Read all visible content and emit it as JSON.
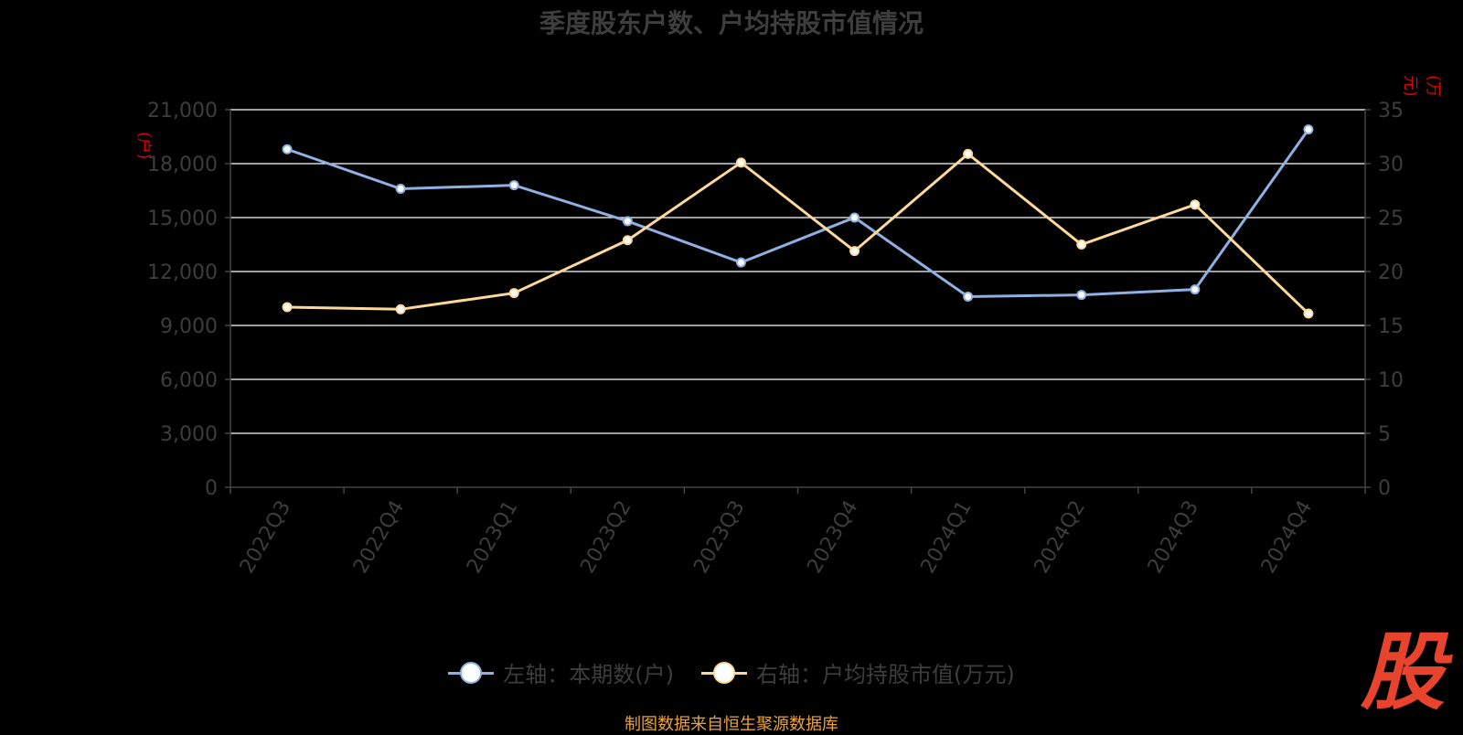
{
  "title": "季度股东户数、户均持股市值情况",
  "units": {
    "left": "(户)",
    "right": "(万元)"
  },
  "legend": [
    {
      "label": "左轴：本期数(户)",
      "color": "#8fb0e0"
    },
    {
      "label": "右轴：户均持股市值(万元)",
      "color": "#fcd89a"
    }
  ],
  "footer": "制图数据来自恒生聚源数据库",
  "logo_text": "股",
  "colors": {
    "grid": "#ffffff",
    "axis": "#444444",
    "tick_text": "#3d3d3d",
    "data_label": "#111111"
  },
  "chart_data": {
    "type": "line",
    "categories": [
      "2022Q3",
      "2022Q4",
      "2023Q1",
      "2023Q2",
      "2023Q3",
      "2023Q4",
      "2024Q1",
      "2024Q2",
      "2024Q3",
      "2024Q4"
    ],
    "y_left": {
      "ticks": [
        "0",
        "3,000",
        "6,000",
        "9,000",
        "12,000",
        "15,000",
        "18,000",
        "21,000"
      ],
      "lim": [
        0,
        21000
      ]
    },
    "y_right": {
      "ticks": [
        "0",
        "5",
        "10",
        "15",
        "20",
        "25",
        "30",
        "35"
      ],
      "lim": [
        0,
        35
      ]
    },
    "grid": true,
    "legend_position": "bottom",
    "series": [
      {
        "name": "左轴：本期数(户)",
        "axis": "left",
        "color": "#8fb0e0",
        "values": [
          18800,
          16600,
          16800,
          14800,
          12500,
          15000,
          10600,
          10700,
          11000,
          19900
        ]
      },
      {
        "name": "右轴：户均持股市值(万元)",
        "axis": "right",
        "color": "#fcd89a",
        "values": [
          16.7,
          16.5,
          18.0,
          22.9,
          30.1,
          21.9,
          30.9,
          22.5,
          26.2,
          16.1
        ]
      }
    ]
  }
}
